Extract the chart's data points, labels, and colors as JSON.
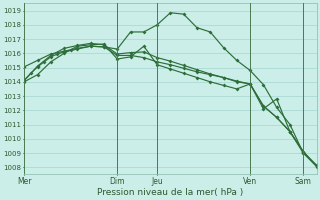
{
  "xlabel": "Pression niveau de la mer( hPa )",
  "bg_color": "#cceee8",
  "grid_color": "#b0ddd8",
  "line_color": "#2d6e3a",
  "vline_color": "#4a7a50",
  "xlim": [
    0,
    22
  ],
  "ylim": [
    1007.5,
    1019.5
  ],
  "yticks": [
    1008,
    1009,
    1010,
    1011,
    1012,
    1013,
    1014,
    1015,
    1016,
    1017,
    1018,
    1019
  ],
  "day_ticks_x": [
    0,
    7,
    10,
    17,
    21
  ],
  "day_labels": [
    "Mer",
    "Dim",
    "Jeu",
    "Ven",
    "Sam"
  ],
  "line1_x": [
    0,
    0.5,
    1,
    1.5,
    2,
    2.5,
    3,
    3.5,
    4,
    5,
    6,
    7,
    8,
    9,
    10,
    11,
    12,
    13,
    14,
    15,
    16,
    17,
    18,
    19,
    20,
    21,
    22
  ],
  "line1_y": [
    1014.1,
    1014.6,
    1015.05,
    1015.4,
    1015.75,
    1015.95,
    1016.1,
    1016.2,
    1016.3,
    1016.5,
    1016.45,
    1016.3,
    1017.5,
    1017.5,
    1018.0,
    1018.85,
    1018.75,
    1017.8,
    1017.5,
    1016.4,
    1015.5,
    1014.8,
    1013.8,
    1012.2,
    1011.0,
    1009.0,
    1008.15
  ],
  "line2_x": [
    0,
    1,
    2,
    3,
    4,
    5,
    6,
    7,
    8,
    9,
    10,
    11,
    12,
    13,
    14,
    15,
    16,
    17,
    18,
    19,
    20,
    21,
    22
  ],
  "line2_y": [
    1015.05,
    1015.5,
    1015.95,
    1016.15,
    1016.35,
    1016.5,
    1016.45,
    1015.85,
    1015.85,
    1015.7,
    1015.4,
    1015.2,
    1014.95,
    1014.7,
    1014.5,
    1014.3,
    1014.05,
    1013.85,
    1012.3,
    1011.5,
    1010.5,
    1009.1,
    1008.1
  ],
  "line3_x": [
    0,
    1,
    2,
    3,
    4,
    5,
    6,
    7,
    8,
    9,
    10,
    11,
    12,
    13,
    14,
    15,
    16,
    17,
    18,
    19,
    20,
    21,
    22
  ],
  "line3_y": [
    1014.1,
    1015.1,
    1015.85,
    1016.35,
    1016.55,
    1016.7,
    1016.6,
    1015.95,
    1016.05,
    1016.1,
    1015.7,
    1015.45,
    1015.15,
    1014.85,
    1014.55,
    1014.3,
    1014.0,
    1013.85,
    1012.3,
    1011.5,
    1010.5,
    1009.1,
    1008.1
  ],
  "line4_x": [
    0,
    1,
    2,
    3,
    4,
    5,
    6,
    7,
    8,
    9,
    10,
    11,
    12,
    13,
    14,
    15,
    16,
    17,
    18,
    19,
    20,
    21,
    22
  ],
  "line4_y": [
    1014.0,
    1014.5,
    1015.4,
    1016.0,
    1016.5,
    1016.6,
    1016.65,
    1015.6,
    1015.75,
    1016.5,
    1015.2,
    1014.9,
    1014.6,
    1014.3,
    1014.0,
    1013.75,
    1013.5,
    1013.85,
    1012.1,
    1012.8,
    1010.5,
    1009.0,
    1008.05
  ]
}
